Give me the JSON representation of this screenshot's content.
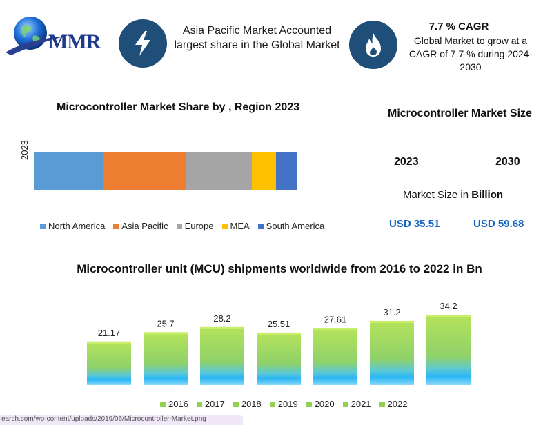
{
  "header": {
    "logo_text": "MMR",
    "headline": "Asia Pacific Market Accounted largest share in the Global Market",
    "cagr_title": "7.7 % CAGR",
    "cagr_text": "Global Market to grow at a CAGR of 7.7 % during 2024-2030",
    "icons": [
      "lightning-bolt-icon",
      "flame-icon",
      "globe-icon"
    ]
  },
  "market_share": {
    "title": "Microcontroller Market Share by , Region 2023",
    "year_label": "2023",
    "legend": [
      "North America",
      "Asia Pacific",
      "Europe",
      "MEA",
      "South America"
    ]
  },
  "market_size": {
    "title": "Microcontroller Market Size",
    "year_a": "2023",
    "year_b": "2030",
    "unit_prefix": "Market Size in ",
    "unit_bold": "Billion",
    "value_a": "USD 35.51",
    "value_b": "USD 59.68"
  },
  "mcu": {
    "title": "Microcontroller unit (MCU) shipments worldwide from 2016 to 2022 in Bn"
  },
  "footer": {
    "url_fragment": "earch.com/wp-content/uploads/2019/06/Microcontroller-Market.png"
  },
  "colors": {
    "north_america": "#5b9bd5",
    "asia_pacific": "#ed7d31",
    "europe": "#a5a5a5",
    "mea": "#ffc000",
    "south_america": "#4472c4",
    "icon_circle": "#1f4e79",
    "usd_blue": "#1565c0",
    "bar_green_top": "#92d050",
    "bar_blue_bottom": "#29b6f6"
  },
  "chart_data": [
    {
      "type": "bar",
      "orientation": "horizontal-stacked",
      "title": "Microcontroller Market Share by , Region 2023",
      "categories": [
        "2023"
      ],
      "series": [
        {
          "name": "North America",
          "values": [
            26
          ]
        },
        {
          "name": "Asia Pacific",
          "values": [
            32
          ]
        },
        {
          "name": "Europe",
          "values": [
            25
          ]
        },
        {
          "name": "MEA",
          "values": [
            9
          ]
        },
        {
          "name": "South America",
          "values": [
            8
          ]
        }
      ],
      "legend": "bottom"
    },
    {
      "type": "bar",
      "title": "Microcontroller unit (MCU) shipments worldwide from 2016 to 2022 in Bn",
      "categories": [
        "2016",
        "2017",
        "2018",
        "2019",
        "2020",
        "2021",
        "2022"
      ],
      "values": [
        21.17,
        25.7,
        28.2,
        25.51,
        27.61,
        31.2,
        34.2
      ],
      "value_labels": [
        "21.17",
        "25.7",
        "28.2",
        "25.51",
        "27.61",
        "31.2",
        "34.2"
      ],
      "legend": "bottom",
      "ylim": [
        0,
        34.2
      ]
    }
  ]
}
